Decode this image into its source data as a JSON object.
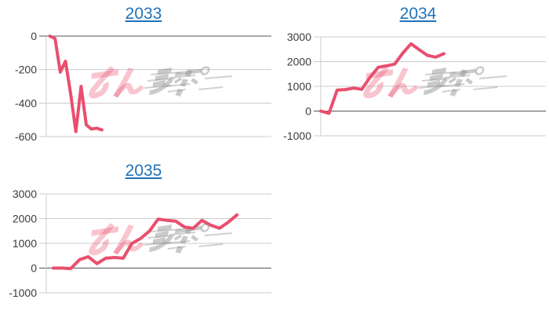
{
  "page": {
    "background": "#ffffff"
  },
  "colors": {
    "link": "#2273b8",
    "line": "#e94f6e",
    "grid": "#cccccc",
    "baseline": "#555555",
    "axis_text": "#3c3c3c",
    "watermark_pink": "#e94f6e",
    "watermark_gray": "#8a8a8a"
  },
  "watermark": {
    "text": "みんレポ"
  },
  "chart_data": [
    {
      "type": "line",
      "title": "2033",
      "legend": "none",
      "grid": true,
      "ylabel": "",
      "xlabel": "",
      "ylim": [
        -600,
        0
      ],
      "y_ticks": [
        0,
        -200,
        -400,
        -600
      ],
      "baseline_value": 0,
      "series_color": "#e94f6e",
      "x_extent": [
        0.016,
        0.247
      ],
      "values": [
        0,
        -15,
        -215,
        -150,
        -345,
        -570,
        -300,
        -530,
        -555,
        -550,
        -560
      ]
    },
    {
      "type": "line",
      "title": "2034",
      "legend": "none",
      "grid": true,
      "ylabel": "",
      "xlabel": "",
      "ylim": [
        -1000,
        3000
      ],
      "y_ticks": [
        3000,
        2000,
        1000,
        0,
        -1000
      ],
      "baseline_value": 0,
      "series_color": "#e94f6e",
      "x_extent": [
        0.0,
        0.547
      ],
      "values": [
        0,
        -90,
        850,
        870,
        930,
        880,
        1365,
        1770,
        1830,
        1900,
        2350,
        2720,
        2480,
        2250,
        2180,
        2320
      ]
    },
    {
      "type": "line",
      "title": "2035",
      "legend": "none",
      "grid": true,
      "ylabel": "",
      "xlabel": "",
      "ylim": [
        -1000,
        3000
      ],
      "y_ticks": [
        3000,
        2000,
        1000,
        0,
        -1000
      ],
      "baseline_value": 0,
      "series_color": "#e94f6e",
      "x_extent": [
        0.031,
        0.847
      ],
      "values": [
        0,
        0,
        -20,
        340,
        460,
        180,
        400,
        430,
        400,
        1000,
        1200,
        1500,
        1980,
        1930,
        1900,
        1660,
        1610,
        1930,
        1740,
        1610,
        1850,
        2150
      ]
    }
  ]
}
